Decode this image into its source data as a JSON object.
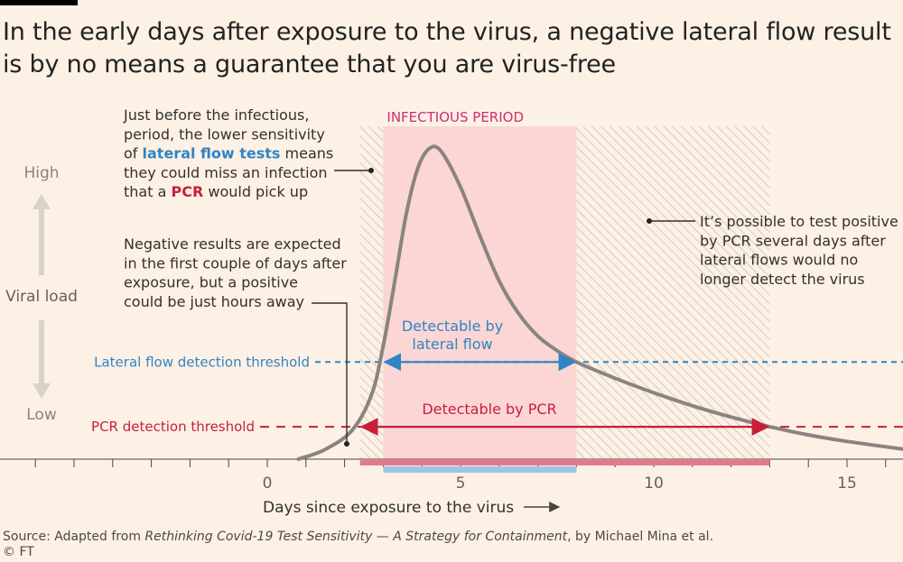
{
  "title_lines": [
    "In the early days after exposure to the virus, a negative lateral flow result",
    "is by no means a guarantee that you are virus-free"
  ],
  "footer": {
    "source_prefix": "Source: Adapted from ",
    "source_title": "Rethinking Covid-19 Test Sensitivity — A Strategy for Containment",
    "source_suffix": ", by Michael Mina et al.",
    "copyright": "© FT"
  },
  "colors": {
    "background": "#fdf1e5",
    "infectious": "#fbd6d4",
    "curve": "#8a8481",
    "lateral_flow": "#2f84c4",
    "pcr": "#c81e3c",
    "infectious_label": "#cc2e6e",
    "pcr_band": "#e07c8a",
    "lateral_band": "#9ec5e6"
  },
  "chart_data": {
    "type": "line",
    "xlabel": "Days since exposure to the virus",
    "ylabel": "Viral load",
    "y_high_label": "High",
    "y_low_label": "Low",
    "xlim": [
      -7,
      16.5
    ],
    "x_ticks": [
      0,
      5,
      10,
      15
    ],
    "x_tick_labels": [
      "0",
      "5",
      "10",
      "15"
    ],
    "ylim": [
      0,
      1
    ],
    "series": [
      {
        "points": [
          [
            0.8,
            0.0
          ],
          [
            1.5,
            0.03
          ],
          [
            2.2,
            0.09
          ],
          [
            2.7,
            0.2
          ],
          [
            3.0,
            0.35
          ],
          [
            3.3,
            0.55
          ],
          [
            3.6,
            0.76
          ],
          [
            3.9,
            0.9
          ],
          [
            4.2,
            0.96
          ],
          [
            4.5,
            0.95
          ],
          [
            5.0,
            0.84
          ],
          [
            5.5,
            0.69
          ],
          [
            6.0,
            0.55
          ],
          [
            6.5,
            0.45
          ],
          [
            7.0,
            0.38
          ],
          [
            7.5,
            0.335
          ],
          [
            8.0,
            0.3
          ],
          [
            9.0,
            0.25
          ],
          [
            10.0,
            0.205
          ],
          [
            11.0,
            0.165
          ],
          [
            12.0,
            0.13
          ],
          [
            13.0,
            0.1
          ],
          [
            14.0,
            0.075
          ],
          [
            15.0,
            0.055
          ],
          [
            16.5,
            0.03
          ]
        ]
      }
    ],
    "thresholds": [
      {
        "label": "Lateral flow detection threshold",
        "value": 0.3,
        "key": "lateral_flow"
      },
      {
        "label": "PCR detection threshold",
        "value": 0.1,
        "key": "pcr"
      }
    ],
    "regions": {
      "infectious": {
        "label": "INFECTIOUS PERIOD",
        "x": [
          3.0,
          8.0
        ]
      },
      "pre_hatch": {
        "x": [
          2.4,
          3.0
        ]
      },
      "post_hatch": {
        "x": [
          8.0,
          13.0
        ]
      }
    },
    "ranges": [
      {
        "label_lines": [
          "Detectable by",
          "lateral flow"
        ],
        "x": [
          3.0,
          8.0
        ],
        "key": "lateral_flow"
      },
      {
        "label_lines": [
          "Detectable by PCR"
        ],
        "x": [
          2.4,
          13.0
        ],
        "key": "pcr"
      }
    ],
    "annotations": [
      {
        "key": "early",
        "lines": [
          [
            {
              "t": "Just before the infectious,"
            }
          ],
          [
            {
              "t": "period, the lower sensitivity"
            }
          ],
          [
            {
              "t": "of "
            },
            {
              "t": "lateral flow tests",
              "style": "lateral_flow"
            },
            {
              "t": " means"
            }
          ],
          [
            {
              "t": "they could miss an infection"
            }
          ],
          [
            {
              "t": "that a "
            },
            {
              "t": "PCR",
              "style": "pcr"
            },
            {
              "t": " would pick up"
            }
          ]
        ]
      },
      {
        "key": "negative",
        "lines": [
          [
            {
              "t": "Negative results are expected"
            }
          ],
          [
            {
              "t": "in the first couple of days after"
            }
          ],
          [
            {
              "t": "exposure, but a positive"
            }
          ],
          [
            {
              "t": "could be just hours away"
            }
          ]
        ]
      },
      {
        "key": "late",
        "lines": [
          [
            {
              "t": "It’s possible to test positive"
            }
          ],
          [
            {
              "t": "by PCR several days after"
            }
          ],
          [
            {
              "t": "lateral flows would no"
            }
          ],
          [
            {
              "t": "longer detect the virus"
            }
          ]
        ]
      }
    ]
  }
}
